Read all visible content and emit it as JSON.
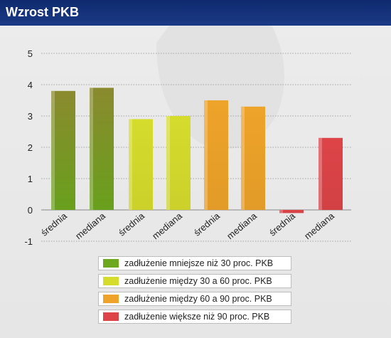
{
  "header": {
    "title": "Wzrost PKB"
  },
  "colors": {
    "header_bg": "#132f75",
    "group1": "#6ea81e",
    "group2": "#d6dc2c",
    "group3": "#eea32a",
    "group4": "#dd4448"
  },
  "legend": {
    "items": [
      {
        "label": "zadłużenie mniejsze niż 30 proc. PKB",
        "color": "#6ea81e"
      },
      {
        "label": "zadłużenie między 30 a 60 proc. PKB",
        "color": "#d6dc2c"
      },
      {
        "label": "zadłużenie między 60 a 90 proc. PKB",
        "color": "#eea32a"
      },
      {
        "label": "zadłużenie większe niż 90 proc. PKB",
        "color": "#dd4448"
      }
    ]
  },
  "chart_data": {
    "type": "bar",
    "title": "Wzrost PKB",
    "xlabel": "",
    "ylabel": "",
    "categories": [
      "średnia",
      "mediana",
      "średnia",
      "mediana",
      "średnia",
      "mediana",
      "średnia",
      "mediana"
    ],
    "values": [
      3.8,
      3.9,
      2.9,
      3.0,
      3.5,
      3.3,
      -0.1,
      2.3
    ],
    "bar_groups": [
      0,
      0,
      1,
      1,
      2,
      2,
      3,
      3
    ],
    "ylim": [
      -1,
      5
    ],
    "yticks": [
      -1,
      0,
      1,
      2,
      3,
      4,
      5
    ],
    "grid": true,
    "legend_position": "bottom"
  }
}
